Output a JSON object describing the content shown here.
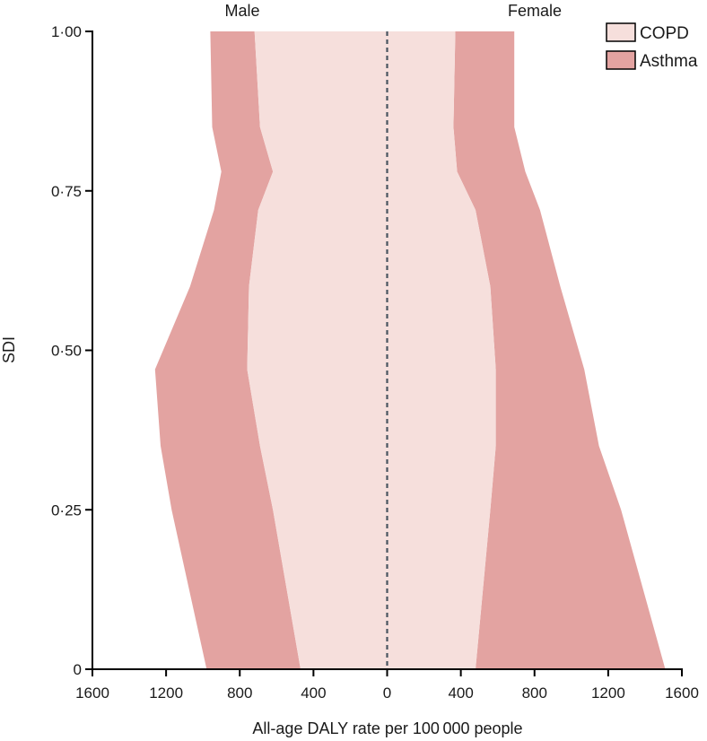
{
  "chart_data": {
    "type": "area",
    "title": "",
    "panel_titles": {
      "left": "Male",
      "right": "Female"
    },
    "xlabel": "All-age DALY rate per 100 000 people",
    "ylabel": "SDI",
    "xlim": [
      -1600,
      1600
    ],
    "ylim": [
      0,
      1
    ],
    "x_ticks": [
      {
        "value": -1600,
        "label": "1600"
      },
      {
        "value": -1200,
        "label": "1200"
      },
      {
        "value": -800,
        "label": "800"
      },
      {
        "value": -400,
        "label": "400"
      },
      {
        "value": 0,
        "label": "0"
      },
      {
        "value": 400,
        "label": "400"
      },
      {
        "value": 800,
        "label": "800"
      },
      {
        "value": 1200,
        "label": "1200"
      },
      {
        "value": 1600,
        "label": "1600"
      }
    ],
    "y_ticks": [
      {
        "value": 0,
        "label": "0"
      },
      {
        "value": 0.25,
        "label": "0·25"
      },
      {
        "value": 0.5,
        "label": "0·50"
      },
      {
        "value": 0.75,
        "label": "0·75"
      },
      {
        "value": 1.0,
        "label": "1·00"
      }
    ],
    "legend": {
      "placement": "top-right"
    },
    "colors": {
      "COPD": "#f6dfdc",
      "Asthma": "#e3a3a1",
      "center_line": "#4a5560",
      "axis": "#000000"
    },
    "sdi": [
      0,
      0.25,
      0.35,
      0.47,
      0.6,
      0.72,
      0.78,
      0.85,
      1.0
    ],
    "series": [
      {
        "name": "COPD",
        "male": [
          470,
          620,
          690,
          760,
          750,
          700,
          620,
          690,
          720
        ],
        "female": [
          480,
          560,
          590,
          590,
          560,
          480,
          380,
          360,
          370
        ]
      },
      {
        "name": "Asthma",
        "male": [
          510,
          550,
          540,
          500,
          320,
          240,
          280,
          260,
          240
        ],
        "female": [
          1030,
          710,
          560,
          480,
          380,
          350,
          370,
          330,
          320
        ]
      }
    ],
    "stacking": "COPD inner, Asthma stacked outward"
  }
}
